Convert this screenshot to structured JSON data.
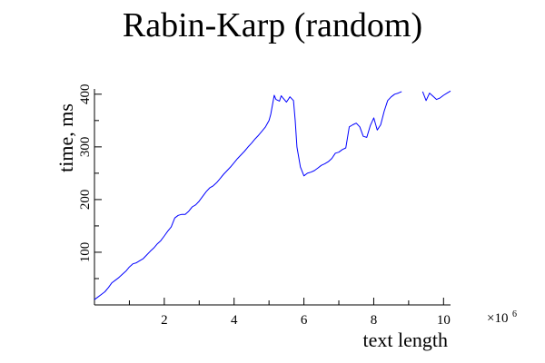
{
  "chart_data": {
    "type": "line",
    "title": "Rabin-Karp (random)",
    "xlabel": "text length",
    "ylabel": "time, ms",
    "x_multiplier": "×10",
    "x_multiplier_exp": "6",
    "xlim": [
      0,
      10.2
    ],
    "ylim": [
      0,
      410
    ],
    "xticks": [
      2,
      4,
      6,
      8,
      10
    ],
    "yticks": [
      100,
      200,
      300,
      400
    ],
    "grid": false,
    "series_color": "#0000ff",
    "series": [
      {
        "segments": [
          [
            [
              0.0,
              10
            ],
            [
              0.1,
              15
            ],
            [
              0.2,
              20
            ],
            [
              0.3,
              25
            ],
            [
              0.4,
              33
            ],
            [
              0.5,
              42
            ],
            [
              0.6,
              47
            ],
            [
              0.7,
              52
            ],
            [
              0.8,
              58
            ],
            [
              0.9,
              64
            ],
            [
              1.0,
              72
            ],
            [
              1.1,
              78
            ],
            [
              1.2,
              80
            ],
            [
              1.3,
              84
            ],
            [
              1.4,
              88
            ],
            [
              1.5,
              95
            ],
            [
              1.6,
              102
            ],
            [
              1.7,
              108
            ],
            [
              1.8,
              116
            ],
            [
              1.9,
              122
            ],
            [
              2.0,
              131
            ],
            [
              2.1,
              140
            ],
            [
              2.2,
              148
            ],
            [
              2.3,
              165
            ],
            [
              2.4,
              170
            ],
            [
              2.5,
              172
            ],
            [
              2.6,
              172
            ],
            [
              2.7,
              178
            ],
            [
              2.8,
              186
            ],
            [
              2.9,
              190
            ],
            [
              3.0,
              197
            ],
            [
              3.1,
              206
            ],
            [
              3.2,
              215
            ],
            [
              3.3,
              222
            ],
            [
              3.4,
              226
            ],
            [
              3.5,
              232
            ],
            [
              3.6,
              240
            ],
            [
              3.7,
              248
            ],
            [
              3.8,
              255
            ],
            [
              3.9,
              262
            ],
            [
              4.0,
              270
            ],
            [
              4.1,
              278
            ],
            [
              4.2,
              285
            ],
            [
              4.3,
              292
            ],
            [
              4.4,
              300
            ],
            [
              4.5,
              307
            ],
            [
              4.6,
              315
            ],
            [
              4.7,
              322
            ],
            [
              4.8,
              330
            ],
            [
              4.9,
              338
            ],
            [
              5.0,
              350
            ],
            [
              5.05,
              362
            ],
            [
              5.1,
              380
            ],
            [
              5.15,
              398
            ],
            [
              5.2,
              390
            ],
            [
              5.3,
              387
            ],
            [
              5.35,
              397
            ],
            [
              5.4,
              393
            ],
            [
              5.5,
              385
            ],
            [
              5.6,
              395
            ],
            [
              5.7,
              388
            ],
            [
              5.75,
              350
            ],
            [
              5.8,
              300
            ],
            [
              5.9,
              262
            ],
            [
              6.0,
              245
            ],
            [
              6.1,
              250
            ],
            [
              6.2,
              252
            ],
            [
              6.3,
              255
            ],
            [
              6.4,
              260
            ],
            [
              6.5,
              265
            ],
            [
              6.6,
              268
            ],
            [
              6.7,
              272
            ],
            [
              6.8,
              278
            ],
            [
              6.9,
              288
            ],
            [
              7.0,
              290
            ],
            [
              7.1,
              295
            ],
            [
              7.2,
              298
            ],
            [
              7.3,
              338
            ],
            [
              7.4,
              342
            ],
            [
              7.5,
              345
            ],
            [
              7.6,
              338
            ],
            [
              7.7,
              320
            ],
            [
              7.8,
              318
            ],
            [
              7.9,
              340
            ],
            [
              8.0,
              355
            ],
            [
              8.1,
              332
            ],
            [
              8.2,
              342
            ],
            [
              8.3,
              368
            ],
            [
              8.4,
              388
            ],
            [
              8.5,
              395
            ],
            [
              8.6,
              400
            ],
            [
              8.7,
              402
            ],
            [
              8.8,
              405
            ]
          ],
          [
            [
              9.4,
              405
            ],
            [
              9.5,
              388
            ],
            [
              9.6,
              402
            ],
            [
              9.7,
              396
            ],
            [
              9.8,
              390
            ],
            [
              9.9,
              393
            ],
            [
              10.0,
              398
            ],
            [
              10.1,
              402
            ],
            [
              10.2,
              406
            ]
          ]
        ]
      }
    ]
  }
}
